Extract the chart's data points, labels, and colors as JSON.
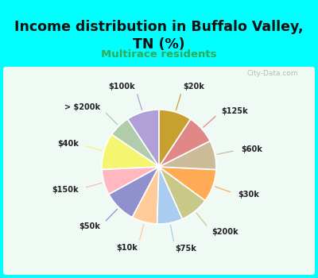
{
  "title": "Income distribution in Buffalo Valley,\nTN (%)",
  "subtitle": "Multirace residents",
  "title_color": "#111111",
  "subtitle_color": "#33aa55",
  "watermark": "City-Data.com",
  "labels": [
    "$100k",
    "> $200k",
    "$40k",
    "$150k",
    "$50k",
    "$10k",
    "$75k",
    "$200k",
    "$30k",
    "$60k",
    "$125k",
    "$20k"
  ],
  "values": [
    9,
    6,
    10,
    7,
    9,
    7,
    7,
    8,
    9,
    8,
    8,
    9
  ],
  "colors": [
    "#b0a0d8",
    "#b0ccaa",
    "#f5f570",
    "#ffb8c0",
    "#9090cc",
    "#ffcc99",
    "#aaccee",
    "#c8c888",
    "#ffaa55",
    "#ccbb99",
    "#e08888",
    "#c8a030"
  ],
  "startangle": 90,
  "wedge_edge_color": "#ffffff",
  "line_colors": [
    "#b0a0d8",
    "#b0ccaa",
    "#f5f570",
    "#ffb8c0",
    "#9090cc",
    "#ffcc99",
    "#aaccee",
    "#c8c888",
    "#ffaa55",
    "#ccbb99",
    "#e08888",
    "#c8a030"
  ],
  "bg_border_color": "#00ffff",
  "bg_inner_color_tl": "#e8f8f8",
  "bg_inner_color_br": "#d0eedc"
}
